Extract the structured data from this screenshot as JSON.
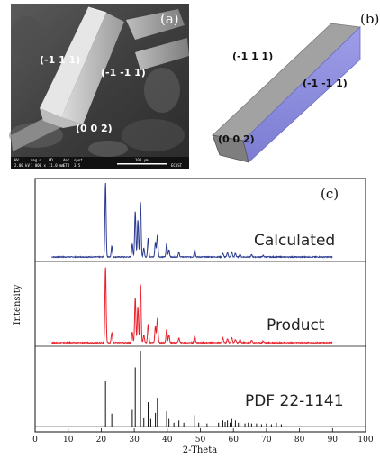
{
  "panel_a": {
    "label": "(a)",
    "faces": [
      "(-1 1 1)",
      "(-1 -1 1)",
      "(0 0 2)"
    ],
    "infobar": {
      "cells": [
        "HV",
        "mag ⊡",
        "WD",
        "det",
        "spot",
        "100 μm"
      ],
      "values": [
        "2.00 kV",
        "1 000 x",
        "11.0 mm",
        "ETD",
        "3.5",
        "ECUST"
      ]
    }
  },
  "panel_b": {
    "label": "(b)",
    "faces": [
      "(-1 1 1)",
      "(-1 -1 1)",
      "(0 0 2)"
    ],
    "colors": {
      "top": "#9a9a9a",
      "side": "#8f8fe0",
      "end": "#7a7a7a"
    }
  },
  "panel_c": {
    "label": "(c)"
  },
  "chart_data": {
    "type": "line",
    "xlabel": "2-Theta",
    "ylabel": "Intensity",
    "xlim": [
      0,
      100
    ],
    "xticks": [
      0,
      10,
      20,
      30,
      40,
      50,
      60,
      70,
      80,
      90,
      100
    ],
    "series": [
      {
        "name": "Calculated",
        "style": "line",
        "color": "#2b3a8f",
        "x_range": [
          5,
          90
        ],
        "peaks": [
          [
            21.3,
            1.0
          ],
          [
            23.2,
            0.15
          ],
          [
            29.4,
            0.18
          ],
          [
            30.3,
            0.62
          ],
          [
            31.1,
            0.5
          ],
          [
            31.9,
            0.75
          ],
          [
            32.9,
            0.12
          ],
          [
            34.2,
            0.25
          ],
          [
            36.4,
            0.2
          ],
          [
            37.0,
            0.3
          ],
          [
            39.8,
            0.18
          ],
          [
            40.5,
            0.1
          ],
          [
            43.5,
            0.06
          ],
          [
            48.3,
            0.1
          ],
          [
            56.8,
            0.05
          ],
          [
            58.2,
            0.06
          ],
          [
            59.5,
            0.07
          ],
          [
            60.6,
            0.05
          ],
          [
            62.0,
            0.04
          ],
          [
            65.5,
            0.03
          ],
          [
            69.0,
            0.02
          ]
        ]
      },
      {
        "name": "Product",
        "style": "line",
        "color": "#e8202a",
        "x_range": [
          5,
          90
        ],
        "peaks": [
          [
            21.3,
            1.0
          ],
          [
            23.2,
            0.13
          ],
          [
            29.4,
            0.14
          ],
          [
            30.3,
            0.6
          ],
          [
            31.1,
            0.48
          ],
          [
            31.9,
            0.78
          ],
          [
            32.9,
            0.1
          ],
          [
            34.2,
            0.24
          ],
          [
            36.4,
            0.22
          ],
          [
            37.0,
            0.32
          ],
          [
            39.8,
            0.18
          ],
          [
            40.5,
            0.1
          ],
          [
            43.5,
            0.06
          ],
          [
            48.3,
            0.09
          ],
          [
            56.8,
            0.06
          ],
          [
            58.2,
            0.05
          ],
          [
            59.5,
            0.07
          ],
          [
            60.6,
            0.04
          ],
          [
            62.0,
            0.04
          ],
          [
            65.5,
            0.03
          ],
          [
            69.0,
            0.02
          ]
        ]
      },
      {
        "name": "PDF 22-1141",
        "style": "stick",
        "color": "#111111",
        "peaks": [
          [
            21.3,
            0.6
          ],
          [
            23.2,
            0.17
          ],
          [
            29.4,
            0.22
          ],
          [
            30.3,
            0.78
          ],
          [
            31.9,
            1.0
          ],
          [
            32.9,
            0.12
          ],
          [
            34.2,
            0.32
          ],
          [
            35.0,
            0.1
          ],
          [
            36.4,
            0.18
          ],
          [
            37.0,
            0.38
          ],
          [
            39.8,
            0.2
          ],
          [
            40.5,
            0.1
          ],
          [
            42.0,
            0.05
          ],
          [
            43.5,
            0.08
          ],
          [
            45.0,
            0.05
          ],
          [
            48.3,
            0.15
          ],
          [
            49.5,
            0.05
          ],
          [
            52.0,
            0.04
          ],
          [
            55.5,
            0.05
          ],
          [
            56.8,
            0.08
          ],
          [
            57.5,
            0.06
          ],
          [
            58.2,
            0.08
          ],
          [
            59.0,
            0.05
          ],
          [
            59.5,
            0.1
          ],
          [
            60.6,
            0.08
          ],
          [
            61.5,
            0.05
          ],
          [
            62.0,
            0.06
          ],
          [
            63.5,
            0.04
          ],
          [
            64.5,
            0.05
          ],
          [
            65.5,
            0.04
          ],
          [
            67.0,
            0.04
          ],
          [
            68.5,
            0.03
          ],
          [
            70.0,
            0.04
          ],
          [
            71.5,
            0.03
          ],
          [
            73.0,
            0.05
          ],
          [
            74.5,
            0.03
          ]
        ]
      }
    ]
  }
}
